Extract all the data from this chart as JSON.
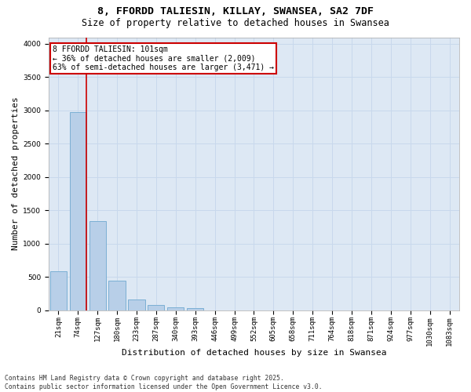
{
  "title_line1": "8, FFORDD TALIESIN, KILLAY, SWANSEA, SA2 7DF",
  "title_line2": "Size of property relative to detached houses in Swansea",
  "xlabel": "Distribution of detached houses by size in Swansea",
  "ylabel": "Number of detached properties",
  "categories": [
    "21sqm",
    "74sqm",
    "127sqm",
    "180sqm",
    "233sqm",
    "287sqm",
    "340sqm",
    "393sqm",
    "446sqm",
    "499sqm",
    "552sqm",
    "605sqm",
    "658sqm",
    "711sqm",
    "764sqm",
    "818sqm",
    "871sqm",
    "924sqm",
    "977sqm",
    "1030sqm",
    "1083sqm"
  ],
  "values": [
    580,
    2970,
    1340,
    440,
    160,
    80,
    40,
    30,
    0,
    0,
    0,
    0,
    0,
    0,
    0,
    0,
    0,
    0,
    0,
    0,
    0
  ],
  "bar_color": "#b8cfe8",
  "bar_edge_color": "#7bafd4",
  "vline_color": "#cc0000",
  "vline_x": 1.45,
  "annotation_text": "8 FFORDD TALIESIN: 101sqm\n← 36% of detached houses are smaller (2,009)\n63% of semi-detached houses are larger (3,471) →",
  "annotation_box_color": "#ffffff",
  "annotation_box_edge_color": "#cc0000",
  "ylim": [
    0,
    4100
  ],
  "yticks": [
    0,
    500,
    1000,
    1500,
    2000,
    2500,
    3000,
    3500,
    4000
  ],
  "grid_color": "#c8d8ec",
  "background_color": "#dde8f4",
  "footer_line1": "Contains HM Land Registry data © Crown copyright and database right 2025.",
  "footer_line2": "Contains public sector information licensed under the Open Government Licence v3.0.",
  "title_fontsize": 9.5,
  "subtitle_fontsize": 8.5,
  "annotation_fontsize": 7,
  "tick_fontsize": 6.5,
  "xlabel_fontsize": 8,
  "ylabel_fontsize": 8,
  "footer_fontsize": 5.8
}
